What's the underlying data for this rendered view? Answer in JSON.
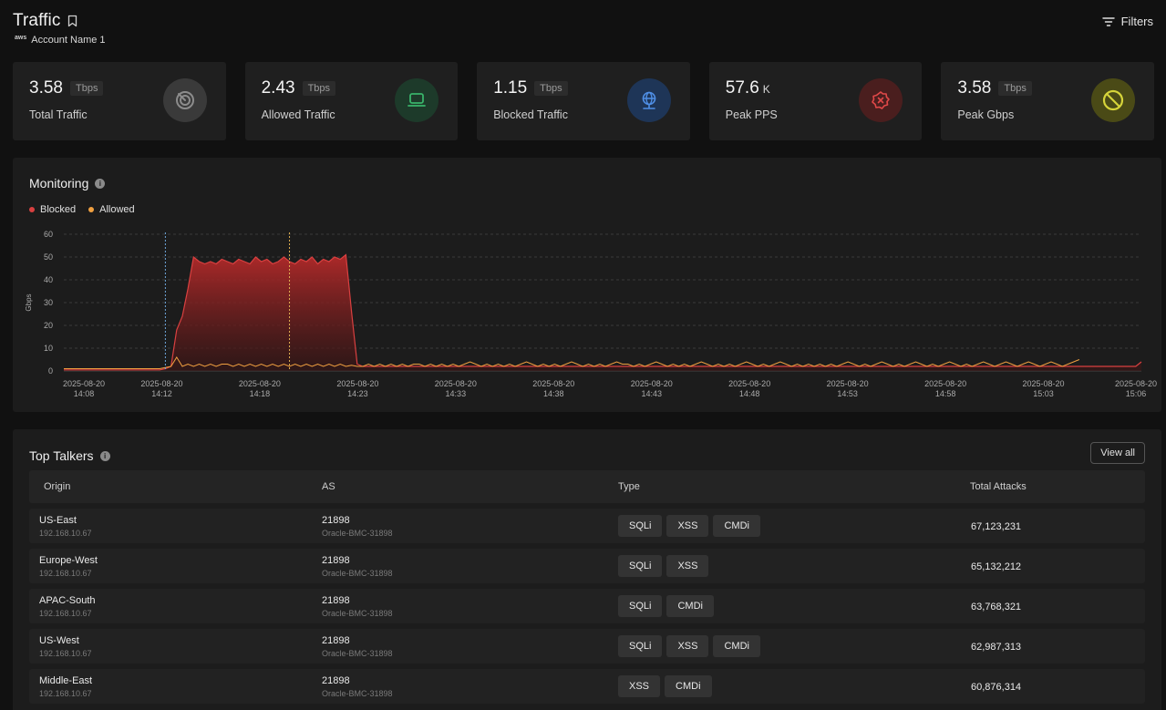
{
  "header": {
    "title": "Traffic",
    "account_logo": "aws",
    "account_name": "Account Name 1",
    "filters_label": "Filters"
  },
  "cards": [
    {
      "value": "3.58",
      "unit": "Tbps",
      "label": "Total Traffic",
      "icon": "radar-icon",
      "color": "#8c8c8c",
      "bg": "#3a3a3a"
    },
    {
      "value": "2.43",
      "unit": "Tbps",
      "label": "Allowed Traffic",
      "icon": "laptop-icon",
      "color": "#39b36a",
      "bg": "#1d3a2a"
    },
    {
      "value": "1.15",
      "unit": "Tbps",
      "label": "Blocked Traffic",
      "icon": "network-globe-icon",
      "color": "#4f8fe6",
      "bg": "#1e3557"
    },
    {
      "value": "57.6",
      "unit": "K",
      "label": "Peak PPS",
      "icon": "x-badge-icon",
      "color": "#e04848",
      "bg": "#4a1e1e"
    },
    {
      "value": "3.58",
      "unit": "Tbps",
      "label": "Peak Gbps",
      "icon": "ban-icon",
      "color": "#d6d43a",
      "bg": "#4a4a16"
    }
  ],
  "monitoring": {
    "title": "Monitoring",
    "legend": [
      {
        "name": "Blocked",
        "color": "#d94040"
      },
      {
        "name": "Allowed",
        "color": "#f0a040"
      }
    ]
  },
  "chart_data": {
    "type": "area",
    "title": "Monitoring",
    "ylabel": "Gbps",
    "xlabel": "",
    "ylim": [
      0,
      60
    ],
    "yticks": [
      0,
      10,
      20,
      30,
      40,
      50,
      60
    ],
    "grid": true,
    "legend_placement": "top-left",
    "xtick_labels": [
      [
        "2025-08-20",
        "14:08"
      ],
      [
        "2025-08-20",
        "14:12"
      ],
      [
        "2025-08-20",
        "14:18"
      ],
      [
        "2025-08-20",
        "14:23"
      ],
      [
        "2025-08-20",
        "14:33"
      ],
      [
        "2025-08-20",
        "14:38"
      ],
      [
        "2025-08-20",
        "14:43"
      ],
      [
        "2025-08-20",
        "14:48"
      ],
      [
        "2025-08-20",
        "14:53"
      ],
      [
        "2025-08-20",
        "14:58"
      ],
      [
        "2025-08-20",
        "15:03"
      ],
      [
        "2025-08-20",
        "15:06"
      ]
    ],
    "series": [
      {
        "name": "Blocked",
        "color": "#d94040",
        "values": [
          0.5,
          0.5,
          0.5,
          0.5,
          0.5,
          0.5,
          0.5,
          0.5,
          0.5,
          0.5,
          0.5,
          0.5,
          0.5,
          0.5,
          0.5,
          0.5,
          0.5,
          0.5,
          1,
          2,
          18,
          24,
          36,
          50,
          48,
          47,
          48,
          47,
          49,
          48,
          47,
          49,
          48,
          47,
          50,
          48,
          49,
          47,
          48,
          50,
          48,
          47,
          49,
          48,
          50,
          47,
          49,
          48,
          50,
          49,
          51,
          26,
          3,
          2,
          2,
          2,
          2,
          2,
          2,
          2,
          2,
          2,
          2,
          2,
          2,
          2,
          2,
          2,
          2,
          2,
          2,
          2,
          2,
          2,
          2,
          2,
          2,
          2,
          2,
          2,
          2,
          2,
          2,
          2,
          2,
          2,
          2,
          2,
          2,
          2,
          2,
          2,
          2,
          2,
          2,
          2,
          2,
          2,
          2,
          2,
          2,
          2,
          2,
          2,
          2,
          2,
          2,
          2,
          2,
          2,
          2,
          2,
          2,
          2,
          2,
          2,
          2,
          2,
          2,
          2,
          2,
          2,
          2,
          2,
          2,
          2,
          2,
          2,
          2,
          2,
          2,
          2,
          2,
          2,
          2,
          2,
          2,
          2,
          2,
          2,
          2,
          2,
          2,
          2,
          2,
          2,
          2,
          2,
          2,
          2,
          2,
          2,
          2,
          2,
          2,
          2,
          2,
          2,
          2,
          2,
          2,
          2,
          2,
          2,
          2,
          2,
          2,
          2,
          2,
          2,
          2,
          2,
          2,
          2,
          2,
          2,
          2,
          2,
          2,
          2,
          2,
          2,
          2,
          2,
          2,
          2,
          2,
          2,
          2,
          2,
          2,
          4
        ]
      },
      {
        "name": "Allowed",
        "color": "#f0a040",
        "values": [
          1,
          1,
          1,
          1,
          1,
          1,
          1,
          1,
          1,
          1,
          1,
          1,
          1,
          1,
          1,
          1,
          1,
          1,
          1.5,
          2,
          6,
          2,
          3,
          2,
          3,
          2,
          3,
          2,
          3,
          3,
          2,
          3,
          2,
          3,
          2,
          3,
          2,
          3,
          2,
          3,
          2,
          3,
          2,
          3,
          2,
          3,
          2,
          3,
          2,
          3,
          2,
          2.5,
          2,
          2,
          3,
          2,
          3,
          2,
          3,
          2,
          3,
          2,
          3,
          3,
          2,
          3,
          2,
          3,
          2,
          3,
          2,
          3,
          4,
          3,
          2,
          3,
          2,
          3,
          2,
          3,
          2,
          3,
          4,
          3,
          2,
          3,
          2,
          3,
          2,
          3,
          4,
          3,
          2,
          3,
          2,
          3,
          2,
          3,
          4,
          3,
          3,
          2,
          3,
          2,
          3,
          4,
          3,
          2,
          3,
          2,
          3,
          2,
          3,
          4,
          3,
          2,
          3,
          2,
          3,
          2,
          3,
          4,
          3,
          2,
          3,
          2,
          3,
          4,
          3,
          2,
          3,
          2,
          3,
          2,
          3,
          2,
          3,
          2,
          3,
          4,
          3,
          2,
          3,
          2,
          3,
          4,
          3,
          2,
          3,
          2,
          3,
          4,
          3,
          2,
          3,
          2,
          3,
          4,
          3,
          2,
          3,
          2,
          3,
          4,
          3,
          2,
          3,
          4,
          3,
          2,
          3,
          4,
          3,
          2,
          3,
          4,
          3,
          2,
          3,
          4,
          5
        ]
      }
    ],
    "markers": [
      {
        "x_index": 18,
        "color": "#6fa8dc"
      },
      {
        "x_index": 40,
        "color": "#e0b050"
      }
    ]
  },
  "talkers": {
    "title": "Top Talkers",
    "view_all_label": "View all",
    "columns": [
      "Origin",
      "AS",
      "Type",
      "Total Attacks"
    ],
    "rows": [
      {
        "origin": "US-East",
        "ip": "192.168.10.67",
        "as": "21898",
        "as_name": "Oracle-BMC-31898",
        "types": [
          "SQLi",
          "XSS",
          "CMDi"
        ],
        "attacks": "67,123,231"
      },
      {
        "origin": "Europe-West",
        "ip": "192.168.10.67",
        "as": "21898",
        "as_name": "Oracle-BMC-31898",
        "types": [
          "SQLi",
          "XSS"
        ],
        "attacks": "65,132,212"
      },
      {
        "origin": "APAC-South",
        "ip": "192.168.10.67",
        "as": "21898",
        "as_name": "Oracle-BMC-31898",
        "types": [
          "SQLi",
          "CMDi"
        ],
        "attacks": "63,768,321"
      },
      {
        "origin": "US-West",
        "ip": "192.168.10.67",
        "as": "21898",
        "as_name": "Oracle-BMC-31898",
        "types": [
          "SQLi",
          "XSS",
          "CMDi"
        ],
        "attacks": "62,987,313"
      },
      {
        "origin": "Middle-East",
        "ip": "192.168.10.67",
        "as": "21898",
        "as_name": "Oracle-BMC-31898",
        "types": [
          "XSS",
          "CMDi"
        ],
        "attacks": "60,876,314"
      }
    ]
  }
}
